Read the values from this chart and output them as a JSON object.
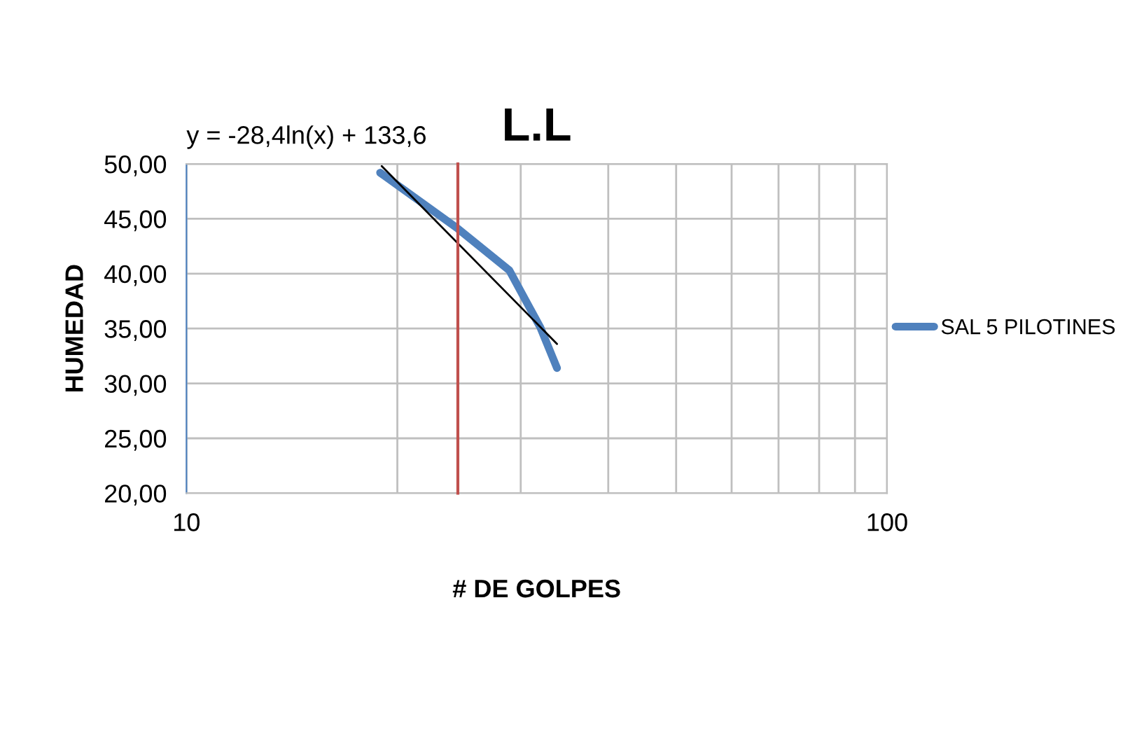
{
  "chart_data": {
    "type": "line",
    "title": "L.L",
    "xlabel": "# DE GOLPES",
    "ylabel": "HUMEDAD",
    "annotations": [
      "y = -28,4ln(x) + 133,6"
    ],
    "log": "x",
    "grid": true,
    "legend": "right",
    "xlim": [
      10,
      100
    ],
    "xticks": [
      10,
      {
        "value": 20,
        "label": null
      },
      {
        "value": 30,
        "label": null
      },
      {
        "value": 40,
        "label": null
      },
      {
        "value": 50,
        "label": null
      },
      {
        "value": 60,
        "label": null
      },
      {
        "value": 70,
        "label": null
      },
      {
        "value": 80,
        "label": null
      },
      {
        "value": 90,
        "label": null
      },
      100
    ],
    "ylim": [
      20,
      50
    ],
    "yticks": [
      {
        "value": 20,
        "label": "20,00"
      },
      {
        "value": 25,
        "label": "25,00"
      },
      {
        "value": 30,
        "label": "30,00"
      },
      {
        "value": 35,
        "label": "35,00"
      },
      {
        "value": 40,
        "label": "40,00"
      },
      {
        "value": 45,
        "label": "45,00"
      },
      {
        "value": 50,
        "label": "50,00"
      }
    ],
    "series": [
      {
        "name": "SAL 5 PILOTINES",
        "color": "#4f81bd",
        "x": [
          18.9,
          24.4,
          28.9,
          32.0,
          33.8
        ],
        "values": [
          49.2,
          44.1,
          40.3,
          35.1,
          31.4
        ]
      },
      {
        "type": "line",
        "color": "#000000",
        "x": [
          19.0,
          33.8
        ],
        "values": [
          49.8,
          33.6
        ]
      }
    ],
    "ref_lines": [
      {
        "axis": "x",
        "value": 24.4,
        "color": "#c0504d"
      }
    ]
  }
}
